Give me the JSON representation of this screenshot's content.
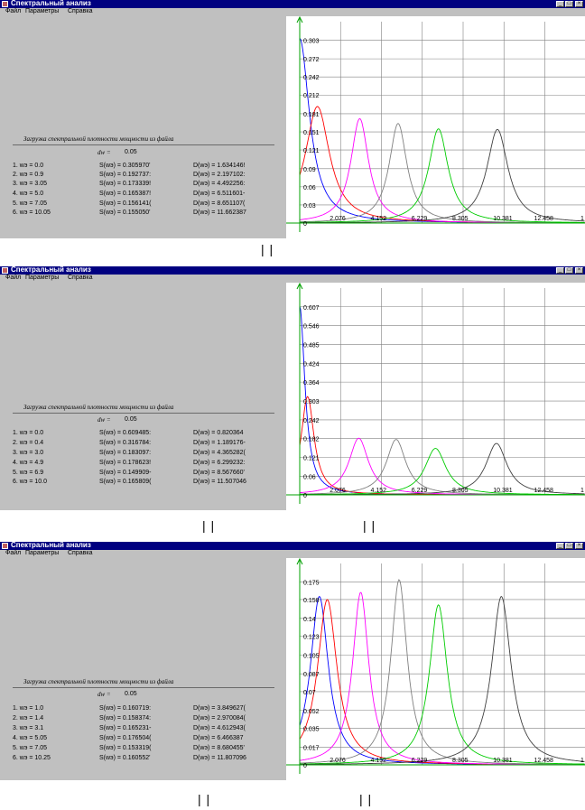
{
  "panels": [
    {
      "title": "Спектральный анализ",
      "menu": [
        "Файл",
        "Параметры",
        "Справка"
      ],
      "heading": "Загрузка спектральной плотности мощности из файла",
      "dw_label": "dw =",
      "dw_value": "0.05",
      "rows": [
        {
          "w": "1.  wэ =  0.0",
          "s": "S(wэ) =  0.305970'",
          "d": "D(wэ) =  1.634146!"
        },
        {
          "w": "2.  wэ =  0.9",
          "s": "S(wэ) =  0.192737:",
          "d": "D(wэ) =  2.197102:"
        },
        {
          "w": "3.  wэ =  3.05",
          "s": "S(wэ) =  0.173339!",
          "d": "D(wэ) =  4.492256:"
        },
        {
          "w": "4.  wэ =  5.0",
          "s": "S(wэ) =  0.165387!",
          "d": "D(wэ) =  6.511601-"
        },
        {
          "w": "5.  wэ =  7.05",
          "s": "S(wэ) =  0.156141(",
          "d": "D(wэ) =  8.651107("
        },
        {
          "w": "6.  wэ =  10.05",
          "s": "S(wэ) =  0.155050'",
          "d": "D(wэ) =  11.662387"
        }
      ],
      "y_ticks": [
        "0.303",
        "0.272",
        "0.242",
        "0.212",
        "0.181",
        "0.151",
        "0.121",
        "0.09",
        "0.06",
        "0.03",
        "0"
      ],
      "x_ticks": [
        "2.076",
        "4.152",
        "6.229",
        "8.305",
        "10.381",
        "12.458",
        "1"
      ],
      "marks": "| |"
    },
    {
      "title": "Спектральный анализ",
      "menu": [
        "Файл",
        "Параметры",
        "Справка"
      ],
      "heading": "Загрузка спектральной плотности мощности из файла",
      "dw_label": "dw =",
      "dw_value": "0.05",
      "rows": [
        {
          "w": "1.  wэ =  0.0",
          "s": "S(wэ) =  0.609485:",
          "d": "D(wэ) =  0.820364"
        },
        {
          "w": "2.  wэ =  0.4",
          "s": "S(wэ) =  0.316784:",
          "d": "D(wэ) =  1.189176-"
        },
        {
          "w": "3.  wэ =  3.0",
          "s": "S(wэ) =  0.183097:",
          "d": "D(wэ) =  4.365282("
        },
        {
          "w": "4.  wэ =  4.9",
          "s": "S(wэ) =  0.178623!",
          "d": "D(wэ) =  6.299232:"
        },
        {
          "w": "5.  wэ =  6.9",
          "s": "S(wэ) =  0.149909-",
          "d": "D(wэ) =  8.567660'"
        },
        {
          "w": "6.  wэ =  10.0",
          "s": "S(wэ) =  0.165809(",
          "d": "D(wэ) =  11.507046"
        }
      ],
      "y_ticks": [
        "0.607",
        "0.546",
        "0.485",
        "0.424",
        "0.364",
        "0.303",
        "0.242",
        "0.182",
        "0.121",
        "0.06",
        "0"
      ],
      "x_ticks": [
        "2.076",
        "4.152",
        "6.229",
        "8.305",
        "10.381",
        "12.458",
        "1"
      ],
      "marks": [
        "| |",
        "| |"
      ]
    },
    {
      "title": "Спектральный анализ",
      "menu": [
        "Файл",
        "Параметры",
        "Справка"
      ],
      "heading": "Загрузка спектральной плотности мощности из файла",
      "dw_label": "dw =",
      "dw_value": "0.05",
      "rows": [
        {
          "w": "1.  wэ =  1.0",
          "s": "S(wэ) =  0.160719:",
          "d": "D(wэ) =  3.849627("
        },
        {
          "w": "2.  wэ =  1.4",
          "s": "S(wэ) =  0.158374:",
          "d": "D(wэ) =  2.970084("
        },
        {
          "w": "3.  wэ =  3.1",
          "s": "S(wэ) =  0.165231-",
          "d": "D(wэ) =  4.612943("
        },
        {
          "w": "4.  wэ =  5.05",
          "s": "S(wэ) =  0.176504(",
          "d": "D(wэ) =  6.466387"
        },
        {
          "w": "5.  wэ =  7.05",
          "s": "S(wэ) =  0.153319(",
          "d": "D(wэ) =  8.680455'"
        },
        {
          "w": "6.  wэ =  10.25",
          "s": "S(wэ) =  0.160552'",
          "d": "D(wэ) =  11.807096"
        }
      ],
      "y_ticks": [
        "0.175",
        "0.158",
        "0.14",
        "0.123",
        "0.105",
        "0.087",
        "0.07",
        "0.052",
        "0.035",
        "0.017",
        "0"
      ],
      "x_ticks": [
        "2.076",
        "4.152",
        "6.229",
        "8.305",
        "10.381",
        "12.458",
        "1"
      ],
      "marks": [
        "| |",
        "| |"
      ]
    }
  ],
  "curve_colors": [
    "#0000ff",
    "#ff0000",
    "#ff00ff",
    "#808080",
    "#00cc00",
    "#404040"
  ],
  "axis_color": "#00a000",
  "grid_color": "#808080",
  "chart_data": [
    {
      "type": "line",
      "xlim": [
        0,
        14.5
      ],
      "ylim": [
        0,
        0.3335
      ],
      "x_ticks": [
        "2.076",
        "4.152",
        "6.229",
        "8.305",
        "10.381",
        "12.458"
      ],
      "y_ticks": [
        "0.303",
        "0.272",
        "0.242",
        "0.212",
        "0.181",
        "0.151",
        "0.121",
        "0.09",
        "0.06",
        "0.03",
        "0"
      ],
      "series": [
        {
          "center": 0.0,
          "peak": 0.306,
          "width": 0.6
        },
        {
          "center": 0.9,
          "peak": 0.193,
          "width": 0.75
        },
        {
          "center": 3.05,
          "peak": 0.173,
          "width": 0.55
        },
        {
          "center": 5.0,
          "peak": 0.165,
          "width": 0.55
        },
        {
          "center": 7.05,
          "peak": 0.156,
          "width": 0.6
        },
        {
          "center": 10.05,
          "peak": 0.155,
          "width": 0.65
        }
      ]
    },
    {
      "type": "line",
      "xlim": [
        0,
        14.5
      ],
      "ylim": [
        0,
        0.6675
      ],
      "x_ticks": [
        "2.076",
        "4.152",
        "6.229",
        "8.305",
        "10.381",
        "12.458"
      ],
      "y_ticks": [
        "0.607",
        "0.546",
        "0.485",
        "0.424",
        "0.364",
        "0.303",
        "0.242",
        "0.182",
        "0.121",
        "0.06",
        "0"
      ],
      "series": [
        {
          "center": 0.0,
          "peak": 0.609,
          "width": 0.32
        },
        {
          "center": 0.4,
          "peak": 0.317,
          "width": 0.4
        },
        {
          "center": 3.0,
          "peak": 0.183,
          "width": 0.6
        },
        {
          "center": 4.9,
          "peak": 0.179,
          "width": 0.6
        },
        {
          "center": 6.9,
          "peak": 0.15,
          "width": 0.65
        },
        {
          "center": 10.0,
          "peak": 0.166,
          "width": 0.65
        }
      ]
    },
    {
      "type": "line",
      "xlim": [
        0,
        14.5
      ],
      "ylim": [
        0,
        0.1925
      ],
      "x_ticks": [
        "2.076",
        "4.152",
        "6.229",
        "8.305",
        "10.381",
        "12.458"
      ],
      "y_ticks": [
        "0.175",
        "0.158",
        "0.14",
        "0.123",
        "0.105",
        "0.087",
        "0.07",
        "0.052",
        "0.035",
        "0.017",
        "0"
      ],
      "series": [
        {
          "center": 1.0,
          "peak": 0.161,
          "width": 0.55
        },
        {
          "center": 1.4,
          "peak": 0.158,
          "width": 0.6
        },
        {
          "center": 3.1,
          "peak": 0.165,
          "width": 0.5
        },
        {
          "center": 5.05,
          "peak": 0.177,
          "width": 0.5
        },
        {
          "center": 7.05,
          "peak": 0.153,
          "width": 0.55
        },
        {
          "center": 10.25,
          "peak": 0.161,
          "width": 0.6
        }
      ]
    }
  ]
}
